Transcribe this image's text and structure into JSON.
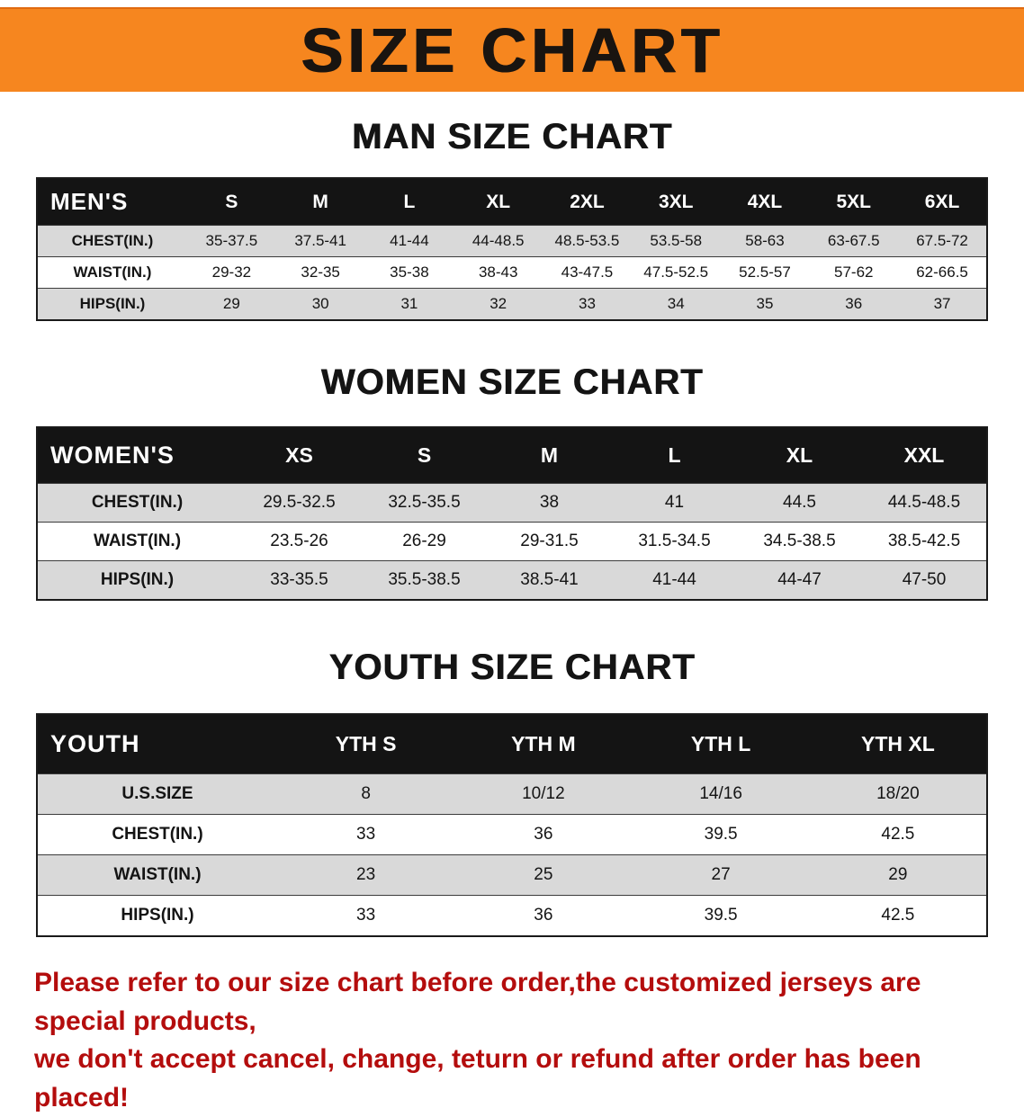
{
  "banner": {
    "title": "SIZE CHART"
  },
  "colors": {
    "banner_bg": "#f6861f",
    "table_header_bg": "#141414",
    "row_stripe": "#d9d9d9",
    "disclaimer_text": "#b40d0d"
  },
  "sections": [
    {
      "id": "men",
      "heading": "MAN SIZE CHART",
      "table": {
        "label": "MEN'S",
        "columns": [
          "S",
          "M",
          "L",
          "XL",
          "2XL",
          "3XL",
          "4XL",
          "5XL",
          "6XL"
        ],
        "rows": [
          {
            "label": "CHEST(IN.)",
            "values": [
              "35-37.5",
              "37.5-41",
              "41-44",
              "44-48.5",
              "48.5-53.5",
              "53.5-58",
              "58-63",
              "63-67.5",
              "67.5-72"
            ]
          },
          {
            "label": "WAIST(IN.)",
            "values": [
              "29-32",
              "32-35",
              "35-38",
              "38-43",
              "43-47.5",
              "47.5-52.5",
              "52.5-57",
              "57-62",
              "62-66.5"
            ]
          },
          {
            "label": "HIPS(IN.)",
            "values": [
              "29",
              "30",
              "31",
              "32",
              "33",
              "34",
              "35",
              "36",
              "37"
            ]
          }
        ]
      }
    },
    {
      "id": "women",
      "heading": "WOMEN SIZE CHART",
      "table": {
        "label": "WOMEN'S",
        "columns": [
          "XS",
          "S",
          "M",
          "L",
          "XL",
          "XXL"
        ],
        "rows": [
          {
            "label": "CHEST(IN.)",
            "values": [
              "29.5-32.5",
              "32.5-35.5",
              "38",
              "41",
              "44.5",
              "44.5-48.5"
            ]
          },
          {
            "label": "WAIST(IN.)",
            "values": [
              "23.5-26",
              "26-29",
              "29-31.5",
              "31.5-34.5",
              "34.5-38.5",
              "38.5-42.5"
            ]
          },
          {
            "label": "HIPS(IN.)",
            "values": [
              "33-35.5",
              "35.5-38.5",
              "38.5-41",
              "41-44",
              "44-47",
              "47-50"
            ]
          }
        ]
      }
    },
    {
      "id": "youth",
      "heading": "YOUTH SIZE CHART",
      "table": {
        "label": "YOUTH",
        "columns": [
          "YTH S",
          "YTH M",
          "YTH L",
          "YTH XL"
        ],
        "rows": [
          {
            "label": "U.S.SIZE",
            "values": [
              "8",
              "10/12",
              "14/16",
              "18/20"
            ]
          },
          {
            "label": "CHEST(IN.)",
            "values": [
              "33",
              "36",
              "39.5",
              "42.5"
            ]
          },
          {
            "label": "WAIST(IN.)",
            "values": [
              "23",
              "25",
              "27",
              "29"
            ]
          },
          {
            "label": "HIPS(IN.)",
            "values": [
              "33",
              "36",
              "39.5",
              "42.5"
            ]
          }
        ]
      }
    }
  ],
  "footer": {
    "lines": [
      "Please refer to our size chart before order,the customized jerseys are special products,",
      "we don't accept cancel, change, teturn or refund after order has been placed!"
    ]
  }
}
